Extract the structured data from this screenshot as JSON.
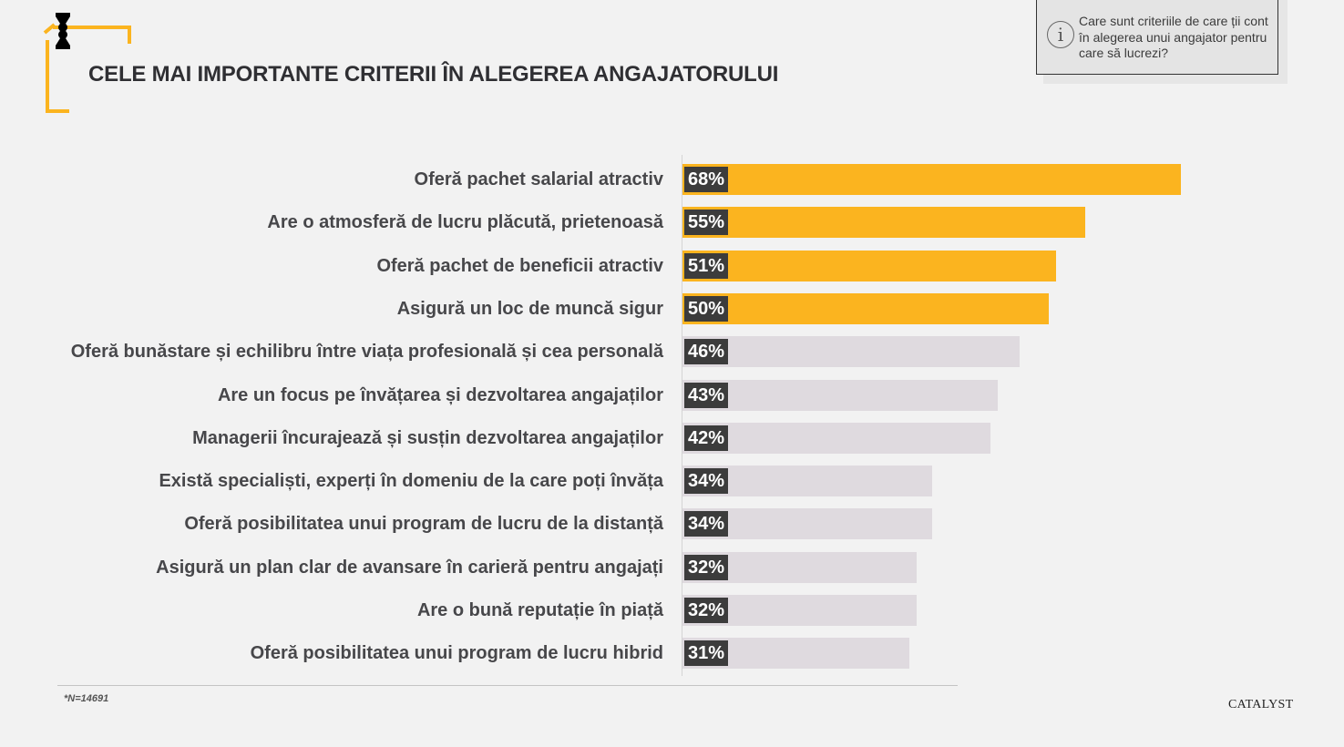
{
  "header": {
    "title": "CELE MAI IMPORTANTE CRITERII ÎN ALEGEREA ANGAJATORULUI",
    "question": "Care sunt criteriile de care ții cont în alegerea unui angajator pentru care să lucrezi?",
    "question_icon": "info-icon"
  },
  "colors": {
    "highlight": "#fbb41f",
    "default_bar": "#dfdadf",
    "value_box": "#3c3c3c",
    "background": "#f2f2f2"
  },
  "chart_data": {
    "type": "bar",
    "orientation": "horizontal",
    "title": "CELE MAI IMPORTANTE CRITERII ÎN ALEGEREA ANGAJATORULUI",
    "xlabel": "",
    "ylabel": "",
    "xlim": [
      0,
      100
    ],
    "unit": "%",
    "grid": false,
    "highlight_top_n": 4,
    "categories": [
      "Oferă pachet salarial atractiv",
      "Are o atmosferă de lucru plăcută, prietenoasă",
      "Oferă pachet de beneficii atractiv",
      "Asigură un loc de muncă sigur",
      "Oferă bunăstare și echilibru între viața profesională și cea personală",
      "Are un focus pe învățarea și dezvoltarea angajaților",
      "Managerii încurajează și susțin dezvoltarea angajaților",
      "Există specialiști, experți în domeniu de la care poți învăța",
      "Oferă posibilitatea unui program de lucru de la distanță",
      "Asigură un plan clar de avansare în carieră pentru angajați",
      "Are o bună reputație în piață",
      "Oferă posibilitatea unui program de lucru hibrid"
    ],
    "values": [
      68,
      55,
      51,
      50,
      46,
      43,
      42,
      34,
      34,
      32,
      32,
      31
    ],
    "value_labels": [
      "68%",
      "55%",
      "51%",
      "50%",
      "46%",
      "43%",
      "42%",
      "34%",
      "34%",
      "32%",
      "32%",
      "31%"
    ]
  },
  "footer": {
    "note": "*N=14691",
    "brand": "CATALYST"
  }
}
